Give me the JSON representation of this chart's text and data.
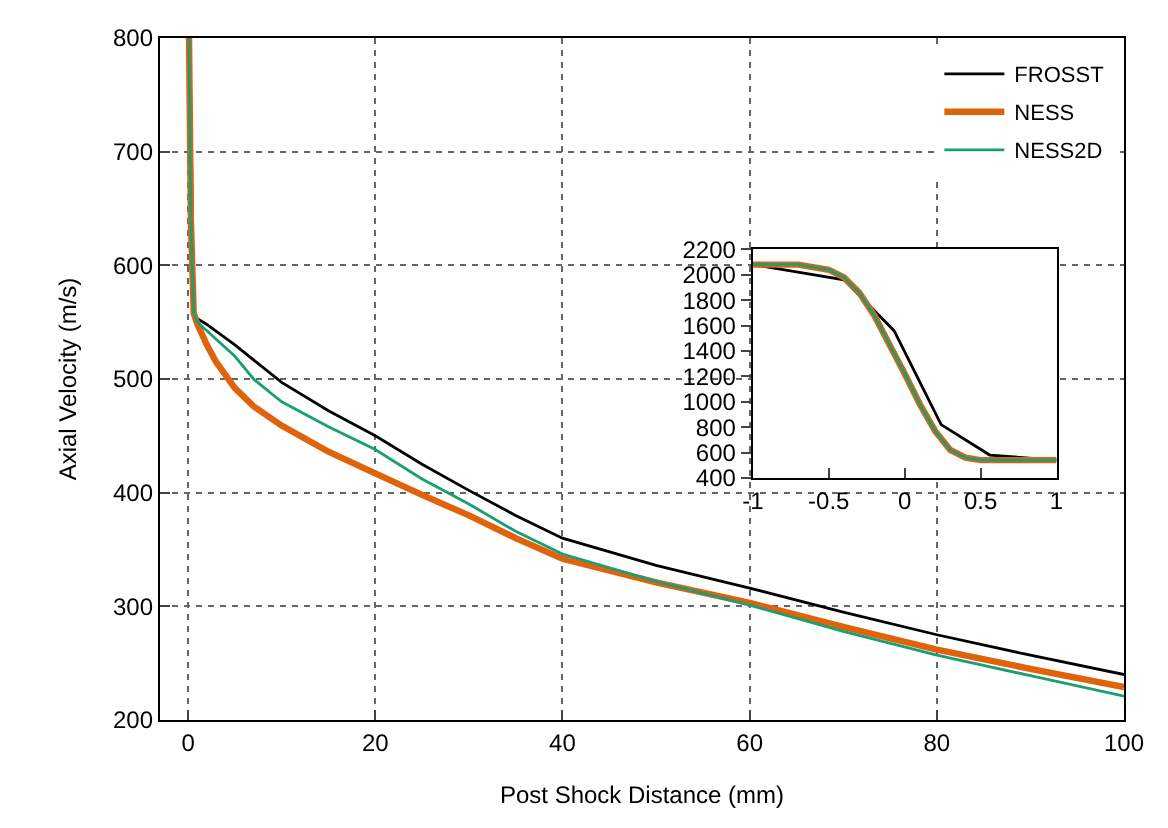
{
  "chart_data": [
    {
      "type": "line",
      "xlabel": "Post Shock Distance (mm)",
      "ylabel": "Axial Velocity (m/s)",
      "xlim": [
        -3,
        100
      ],
      "ylim": [
        200,
        800
      ],
      "xticks": [
        0,
        20,
        40,
        60,
        80,
        100
      ],
      "yticks": [
        200,
        300,
        400,
        500,
        600,
        700,
        800
      ],
      "grid": true,
      "legend": "top right",
      "line_style": "solid",
      "marker": "none",
      "series": [
        {
          "name": "FROSST",
          "color": "#000000",
          "x": [
            0.2,
            0.6,
            2,
            5,
            10,
            15,
            20,
            25,
            30,
            35,
            40,
            50,
            60,
            70,
            80,
            90,
            100
          ],
          "values": [
            800,
            555,
            548,
            530,
            497,
            472,
            450,
            425,
            402,
            380,
            360,
            336,
            316,
            295,
            275,
            257,
            240
          ]
        },
        {
          "name": "NESS",
          "color": "#e0620a",
          "x": [
            0.1,
            0.3,
            0.6,
            1,
            2,
            3,
            5,
            7,
            10,
            15,
            20,
            25,
            30,
            35,
            40,
            50,
            60,
            70,
            80,
            90,
            100
          ],
          "values": [
            800,
            640,
            558,
            548,
            530,
            515,
            492,
            476,
            459,
            436,
            417,
            398,
            380,
            360,
            342,
            321,
            303,
            282,
            262,
            245,
            229
          ]
        },
        {
          "name": "NESS2D",
          "color": "#1a9e77",
          "x": [
            0.1,
            0.3,
            0.6,
            1,
            3,
            5,
            7,
            10,
            15,
            20,
            25,
            30,
            35,
            40,
            50,
            60,
            70,
            80,
            90,
            100
          ],
          "values": [
            800,
            640,
            558,
            550,
            535,
            520,
            500,
            480,
            458,
            438,
            412,
            390,
            366,
            346,
            322,
            301,
            278,
            257,
            239,
            221
          ]
        }
      ]
    },
    {
      "type": "line",
      "xlim": [
        -1,
        1
      ],
      "ylim": [
        400,
        2200
      ],
      "xticks": [
        -1,
        -0.5,
        0,
        0.5,
        1
      ],
      "yticks": [
        400,
        600,
        800,
        1000,
        1200,
        1400,
        1600,
        1800,
        2000,
        2200
      ],
      "grid": false,
      "line_style": "solid",
      "marker": "none",
      "series": [
        {
          "color": "#000000",
          "x": [
            -1,
            -0.4,
            -0.07,
            0.24,
            0.56,
            1
          ],
          "values": [
            2080,
            1960,
            1560,
            820,
            580,
            540
          ]
        },
        {
          "color": "#e0620a",
          "x": [
            -1,
            -0.7,
            -0.5,
            -0.4,
            -0.3,
            -0.2,
            -0.1,
            0,
            0.1,
            0.2,
            0.3,
            0.4,
            0.5,
            0.7,
            1
          ],
          "values": [
            2080,
            2080,
            2040,
            1980,
            1860,
            1680,
            1450,
            1220,
            980,
            770,
            620,
            560,
            540,
            540,
            540
          ]
        },
        {
          "color": "#1a9e77",
          "x": [
            -1,
            -0.7,
            -0.5,
            -0.4,
            -0.3,
            -0.2,
            -0.1,
            0,
            0.1,
            0.2,
            0.3,
            0.4,
            0.5,
            0.7,
            1
          ],
          "values": [
            2080,
            2080,
            2040,
            1980,
            1860,
            1680,
            1450,
            1220,
            980,
            770,
            620,
            560,
            540,
            540,
            540
          ]
        }
      ]
    }
  ]
}
